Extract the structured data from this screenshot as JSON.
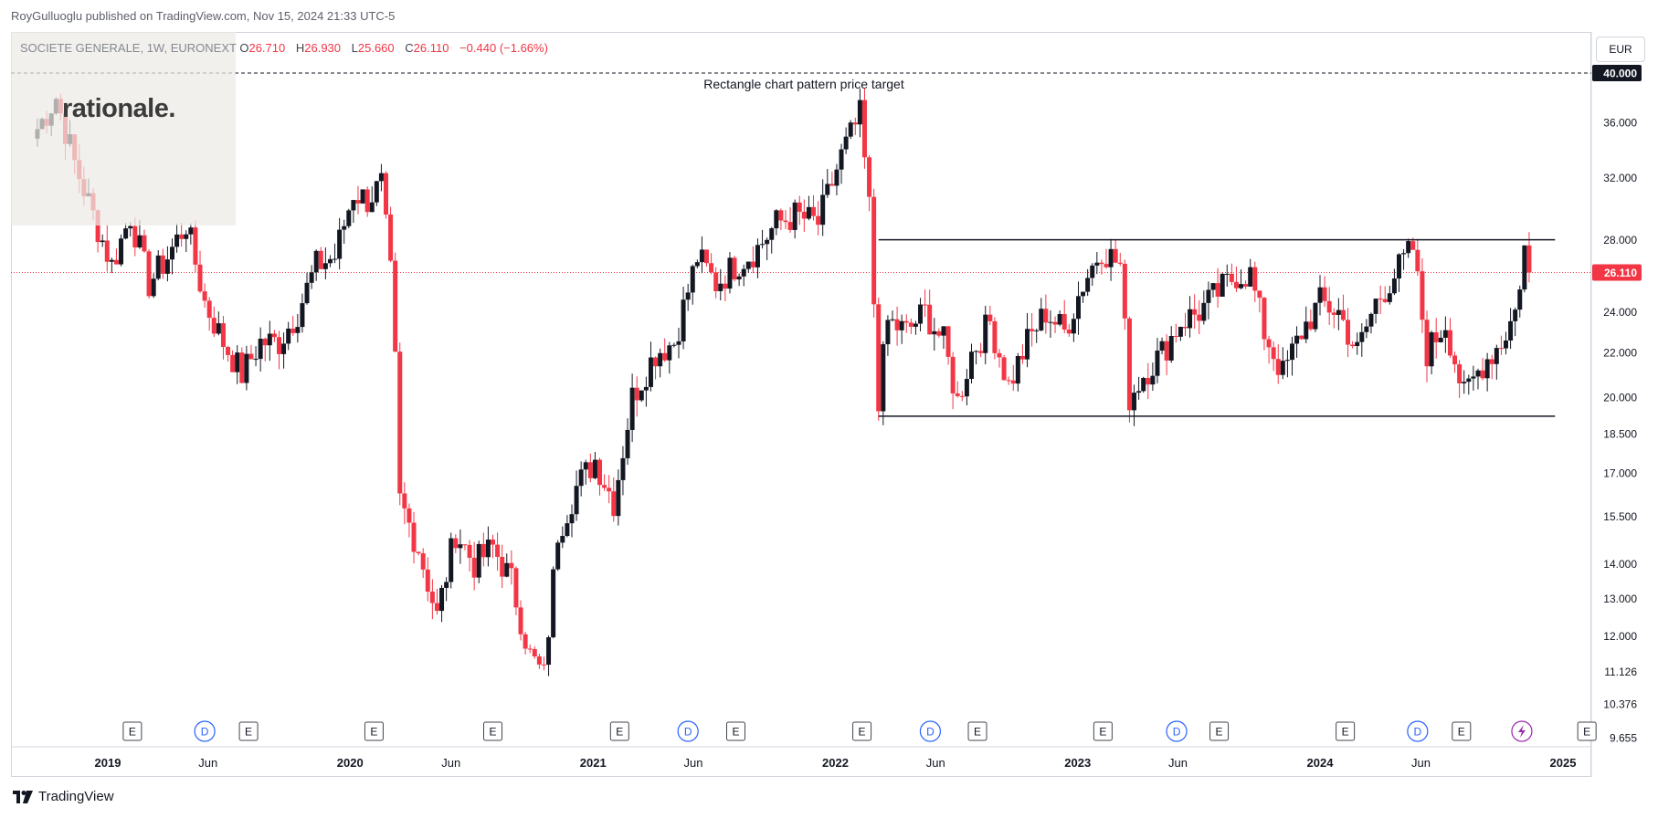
{
  "header": {
    "publisher": "RoyGulluoglu published on TradingView.com, Nov 15, 2024 21:33 UTC-5"
  },
  "logo": {
    "text": "rationale."
  },
  "legend": {
    "symbol": "SOCIETE GENERALE, 1W, EURONEXT",
    "open_label": "O",
    "open": "26.710",
    "high_label": "H",
    "high": "26.930",
    "low_label": "L",
    "low": "25.660",
    "close_label": "C",
    "close": "26.110",
    "change": "−0.440 (−1.66%)"
  },
  "currency": {
    "label": "EUR"
  },
  "footer": {
    "brand": "TradingView",
    "icon": "tradingview-logo-icon"
  },
  "colors": {
    "up": "#131722",
    "down": "#f23645",
    "grid": "#f0f3fa",
    "last_price": "#f23645",
    "event_e": "#131722",
    "event_d": "#2962ff",
    "event_split": "#9c27b0"
  },
  "chart_data": {
    "type": "candlestick",
    "title": "",
    "ylabel": "",
    "xlabel": "",
    "scale": "log",
    "ylim": [
      9.4,
      44.5
    ],
    "grid": false,
    "y_ticks": [
      "40.000",
      "36.000",
      "32.000",
      "28.000",
      "24.000",
      "22.000",
      "20.000",
      "18.500",
      "17.000",
      "15.500",
      "14.000",
      "13.000",
      "12.000",
      "11.126",
      "10.376",
      "9.655"
    ],
    "x_labels": [
      {
        "date": "2019-01-01",
        "label": "2019",
        "bold": true
      },
      {
        "date": "2019-06-01",
        "label": "Jun",
        "bold": false
      },
      {
        "date": "2020-01-01",
        "label": "2020",
        "bold": true
      },
      {
        "date": "2020-06-01",
        "label": "Jun",
        "bold": false
      },
      {
        "date": "2021-01-01",
        "label": "2021",
        "bold": true
      },
      {
        "date": "2021-06-01",
        "label": "Jun",
        "bold": false
      },
      {
        "date": "2022-01-01",
        "label": "2022",
        "bold": true
      },
      {
        "date": "2022-06-01",
        "label": "Jun",
        "bold": false
      },
      {
        "date": "2023-01-01",
        "label": "2023",
        "bold": true
      },
      {
        "date": "2023-06-01",
        "label": "Jun",
        "bold": false
      },
      {
        "date": "2024-01-01",
        "label": "2024",
        "bold": true
      },
      {
        "date": "2024-06-01",
        "label": "Jun",
        "bold": false
      },
      {
        "date": "2025-01-01",
        "label": "2025",
        "bold": true
      }
    ],
    "last_price": {
      "value": 26.11,
      "label": "26.110"
    },
    "target": {
      "value": 40.0,
      "label": "40.000",
      "text": "Rectangle chart pattern price target"
    },
    "rectangle": {
      "top": 28.0,
      "bottom": 19.2,
      "start": "2022-03-07",
      "end": "2024-12-30"
    },
    "close_path": [
      [
        "2018-09-17",
        35.5
      ],
      [
        "2018-10-15",
        38.0
      ],
      [
        "2018-11-12",
        33.0
      ],
      [
        "2018-12-10",
        29.5
      ],
      [
        "2019-01-07",
        26.5
      ],
      [
        "2019-02-04",
        29.5
      ],
      [
        "2019-03-04",
        25.5
      ],
      [
        "2019-04-01",
        27.0
      ],
      [
        "2019-04-29",
        29.0
      ],
      [
        "2019-05-27",
        24.5
      ],
      [
        "2019-06-24",
        22.5
      ],
      [
        "2019-07-22",
        21.0
      ],
      [
        "2019-08-19",
        22.5
      ],
      [
        "2019-09-16",
        22.5
      ],
      [
        "2019-10-14",
        24.0
      ],
      [
        "2019-11-11",
        26.5
      ],
      [
        "2019-12-09",
        27.0
      ],
      [
        "2020-01-06",
        31.0
      ],
      [
        "2020-01-27",
        30.5
      ],
      [
        "2020-02-17",
        31.5
      ],
      [
        "2020-03-02",
        26.0
      ],
      [
        "2020-03-09",
        21.5
      ],
      [
        "2020-03-16",
        16.0
      ],
      [
        "2020-04-13",
        14.5
      ],
      [
        "2020-05-11",
        12.5
      ],
      [
        "2020-06-08",
        15.0
      ],
      [
        "2020-07-06",
        14.0
      ],
      [
        "2020-08-03",
        14.5
      ],
      [
        "2020-08-31",
        13.5
      ],
      [
        "2020-09-28",
        11.5
      ],
      [
        "2020-10-19",
        11.0
      ],
      [
        "2020-11-09",
        15.0
      ],
      [
        "2020-12-07",
        16.5
      ],
      [
        "2021-01-04",
        17.5
      ],
      [
        "2021-02-01",
        16.0
      ],
      [
        "2021-03-01",
        20.0
      ],
      [
        "2021-04-05",
        22.0
      ],
      [
        "2021-05-03",
        22.5
      ],
      [
        "2021-06-07",
        27.0
      ],
      [
        "2021-07-05",
        25.5
      ],
      [
        "2021-08-02",
        26.5
      ],
      [
        "2021-09-06",
        27.5
      ],
      [
        "2021-10-04",
        29.0
      ],
      [
        "2021-11-01",
        29.5
      ],
      [
        "2021-12-06",
        29.0
      ],
      [
        "2022-01-10",
        33.5
      ],
      [
        "2022-02-07",
        36.5
      ],
      [
        "2022-02-21",
        30.0
      ],
      [
        "2022-03-07",
        20.0
      ],
      [
        "2022-03-21",
        23.5
      ],
      [
        "2022-04-18",
        23.0
      ],
      [
        "2022-05-16",
        24.0
      ],
      [
        "2022-06-13",
        22.5
      ],
      [
        "2022-07-04",
        19.8
      ],
      [
        "2022-07-25",
        22.0
      ],
      [
        "2022-08-22",
        23.5
      ],
      [
        "2022-09-19",
        20.5
      ],
      [
        "2022-10-17",
        22.5
      ],
      [
        "2022-11-14",
        24.0
      ],
      [
        "2022-12-12",
        23.0
      ],
      [
        "2023-01-09",
        25.5
      ],
      [
        "2023-02-06",
        27.5
      ],
      [
        "2023-03-06",
        26.5
      ],
      [
        "2023-03-20",
        20.0
      ],
      [
        "2023-04-10",
        21.0
      ],
      [
        "2023-05-08",
        22.0
      ],
      [
        "2023-06-05",
        23.5
      ],
      [
        "2023-07-03",
        24.0
      ],
      [
        "2023-07-31",
        25.0
      ],
      [
        "2023-08-28",
        26.0
      ],
      [
        "2023-09-18",
        26.0
      ],
      [
        "2023-10-09",
        23.0
      ],
      [
        "2023-11-06",
        21.0
      ],
      [
        "2023-12-04",
        23.0
      ],
      [
        "2024-01-01",
        24.5
      ],
      [
        "2024-01-29",
        24.0
      ],
      [
        "2024-02-26",
        22.0
      ],
      [
        "2024-03-25",
        24.5
      ],
      [
        "2024-04-22",
        26.0
      ],
      [
        "2024-05-20",
        27.5
      ],
      [
        "2024-06-10",
        22.0
      ],
      [
        "2024-07-08",
        23.5
      ],
      [
        "2024-08-05",
        20.0
      ],
      [
        "2024-09-02",
        21.5
      ],
      [
        "2024-09-30",
        22.5
      ],
      [
        "2024-10-21",
        24.0
      ],
      [
        "2024-11-04",
        27.5
      ],
      [
        "2024-11-11",
        26.11
      ]
    ],
    "events": [
      {
        "type": "E",
        "date": "2019-02-07"
      },
      {
        "type": "D",
        "date": "2019-05-27"
      },
      {
        "type": "E",
        "date": "2019-08-01"
      },
      {
        "type": "E",
        "date": "2020-02-06"
      },
      {
        "type": "E",
        "date": "2020-08-03"
      },
      {
        "type": "E",
        "date": "2021-02-10"
      },
      {
        "type": "D",
        "date": "2021-05-24"
      },
      {
        "type": "E",
        "date": "2021-08-04"
      },
      {
        "type": "E",
        "date": "2022-02-10"
      },
      {
        "type": "D",
        "date": "2022-05-24"
      },
      {
        "type": "E",
        "date": "2022-08-03"
      },
      {
        "type": "E",
        "date": "2023-02-08"
      },
      {
        "type": "D",
        "date": "2023-05-30"
      },
      {
        "type": "E",
        "date": "2023-08-02"
      },
      {
        "type": "E",
        "date": "2024-02-08"
      },
      {
        "type": "D",
        "date": "2024-05-27"
      },
      {
        "type": "E",
        "date": "2024-08-01"
      },
      {
        "type": "S",
        "date": "2024-10-31"
      },
      {
        "type": "E",
        "date": "2025-02-06"
      }
    ]
  }
}
